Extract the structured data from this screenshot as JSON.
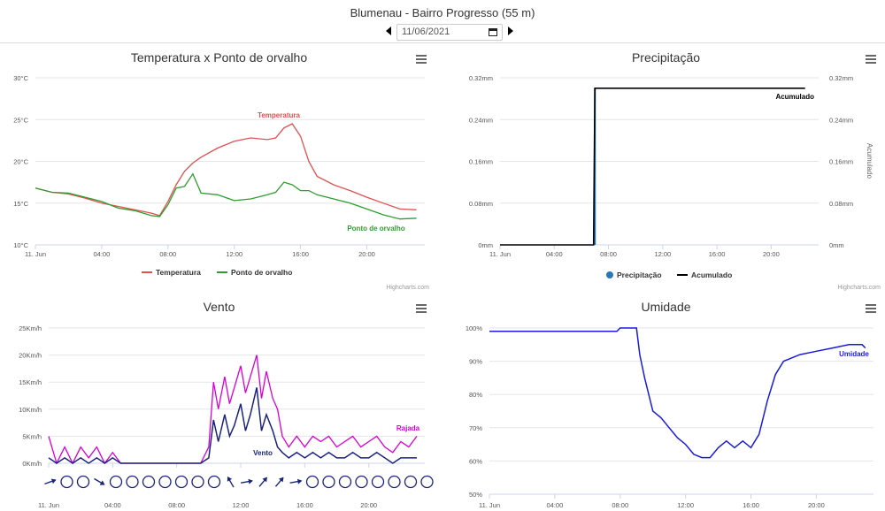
{
  "page": {
    "title": "Blumenau - Bairro Progresso (55 m)",
    "date": "11/06/2021"
  },
  "icons": {
    "prev": "triangle-left-icon",
    "next": "triangle-right-icon",
    "calendar": "calendar-icon",
    "menu": "hamburger-menu-icon"
  },
  "credits": "Highcharts.com",
  "chart_data": [
    {
      "type": "line",
      "title": "Temperatura x Ponto de orvalho",
      "x_ticks": [
        "11. Jun",
        "04:00",
        "08:00",
        "12:00",
        "16:00",
        "20:00"
      ],
      "y_ticks": [
        "10°C",
        "15°C",
        "20°C",
        "25°C",
        "30°C"
      ],
      "ylim": [
        10,
        30
      ],
      "xlim": [
        0,
        23.5
      ],
      "legend_position": "bottom",
      "series": [
        {
          "name": "Temperatura",
          "color": "#e05050",
          "x": [
            0,
            1,
            2,
            3,
            4,
            5,
            6,
            7,
            7.5,
            8,
            8.5,
            9,
            9.5,
            10,
            11,
            12,
            13,
            14,
            14.5,
            15,
            15.5,
            16,
            16.5,
            17,
            18,
            19,
            20,
            21,
            22,
            23
          ],
          "y": [
            16.8,
            16.3,
            16.1,
            15.6,
            15.0,
            14.6,
            14.2,
            13.8,
            13.5,
            15.2,
            17.2,
            18.8,
            19.8,
            20.5,
            21.6,
            22.4,
            22.8,
            22.6,
            22.8,
            24.0,
            24.5,
            23.0,
            20.0,
            18.2,
            17.2,
            16.5,
            15.7,
            15.0,
            14.3,
            14.2
          ]
        },
        {
          "name": "Ponto de orvalho",
          "color": "#2e9e2e",
          "x": [
            0,
            1,
            2,
            3,
            4,
            5,
            6,
            7,
            7.5,
            8,
            8.5,
            9,
            9.5,
            10,
            11,
            12,
            13,
            14,
            14.5,
            15,
            15.5,
            16,
            16.5,
            17,
            18,
            19,
            20,
            21,
            22,
            23
          ],
          "y": [
            16.8,
            16.3,
            16.2,
            15.7,
            15.2,
            14.4,
            14.1,
            13.5,
            13.4,
            14.8,
            16.8,
            17.0,
            18.5,
            16.2,
            16.0,
            15.3,
            15.5,
            16.0,
            16.3,
            17.5,
            17.2,
            16.5,
            16.5,
            16.0,
            15.5,
            15.0,
            14.3,
            13.6,
            13.1,
            13.2
          ]
        }
      ],
      "annotations": [
        "Temperatura",
        "Ponto de orvalho"
      ]
    },
    {
      "type": "line",
      "title": "Precipitação",
      "x_ticks": [
        "11. Jun",
        "04:00",
        "08:00",
        "12:00",
        "16:00",
        "20:00"
      ],
      "y_ticks_left": [
        "0mm",
        "0.08mm",
        "0.16mm",
        "0.24mm",
        "0.32mm"
      ],
      "y_ticks_right": [
        "0mm",
        "0.08mm",
        "0.16mm",
        "0.24mm",
        "0.32mm"
      ],
      "y_right_label": "Acumulado",
      "ylim": [
        0,
        0.32
      ],
      "xlim": [
        0,
        23.5
      ],
      "legend_position": "bottom",
      "series": [
        {
          "name": "Precipitação",
          "color": "#2878b8",
          "x": [
            7.0
          ],
          "y": [
            0.3
          ]
        },
        {
          "name": "Acumulado",
          "color": "#000000",
          "x": [
            0,
            6.9,
            7.0,
            22.5
          ],
          "y": [
            0,
            0,
            0.3,
            0.3
          ]
        }
      ],
      "annotations": [
        "Acumulado"
      ]
    },
    {
      "type": "line",
      "title": "Vento",
      "x_ticks": [
        "11. Jun",
        "04:00",
        "08:00",
        "12:00",
        "16:00",
        "20:00"
      ],
      "y_ticks": [
        "0Km/h",
        "5Km/h",
        "10Km/h",
        "15Km/h",
        "20Km/h",
        "25Km/h"
      ],
      "ylim": [
        0,
        25
      ],
      "xlim": [
        0,
        23.5
      ],
      "series": [
        {
          "name": "Rajada",
          "color": "#d400d4",
          "x": [
            0,
            0.5,
            1,
            1.5,
            2,
            2.5,
            3,
            3.5,
            4,
            4.5,
            5,
            5.5,
            6,
            6.5,
            7,
            7.5,
            8,
            8.5,
            9,
            9.5,
            10,
            10.3,
            10.6,
            11,
            11.3,
            11.6,
            12,
            12.3,
            12.6,
            13,
            13.3,
            13.6,
            14,
            14.3,
            14.6,
            15,
            15.5,
            16,
            16.5,
            17,
            17.5,
            18,
            18.5,
            19,
            19.5,
            20,
            20.5,
            21,
            21.5,
            22,
            22.5,
            23
          ],
          "y": [
            5,
            0,
            3,
            0,
            3,
            1,
            3,
            0,
            2,
            0,
            0,
            0,
            0,
            0,
            0,
            0,
            0,
            0,
            0,
            0,
            3,
            15,
            10,
            16,
            11,
            14,
            18,
            13,
            16,
            20,
            12,
            17,
            12,
            10,
            5,
            3,
            5,
            3,
            5,
            4,
            5,
            3,
            4,
            5,
            3,
            4,
            5,
            3,
            2,
            4,
            3,
            5
          ]
        },
        {
          "name": "Vento",
          "color": "#1a237e",
          "x": [
            0,
            0.5,
            1,
            1.5,
            2,
            2.5,
            3,
            3.5,
            4,
            4.5,
            5,
            5.5,
            6,
            6.5,
            7,
            7.5,
            8,
            8.5,
            9,
            9.5,
            10,
            10.3,
            10.6,
            11,
            11.3,
            11.6,
            12,
            12.3,
            12.6,
            13,
            13.3,
            13.6,
            14,
            14.3,
            14.6,
            15,
            15.5,
            16,
            16.5,
            17,
            17.5,
            18,
            18.5,
            19,
            19.5,
            20,
            20.5,
            21,
            21.5,
            22,
            22.5,
            23
          ],
          "y": [
            1,
            0,
            1,
            0,
            1,
            0,
            1,
            0,
            1,
            0,
            0,
            0,
            0,
            0,
            0,
            0,
            0,
            0,
            0,
            0,
            1,
            8,
            4,
            9,
            5,
            7,
            11,
            6,
            9,
            14,
            6,
            9,
            6,
            3,
            2,
            1,
            2,
            1,
            2,
            1,
            2,
            1,
            1,
            2,
            1,
            1,
            2,
            1,
            0,
            1,
            1,
            1
          ]
        }
      ],
      "annotations": [
        "Rajada",
        "Vento"
      ],
      "wind_symbols": [
        "arrow",
        "calm",
        "calm",
        "arrow",
        "calm",
        "calm",
        "calm",
        "calm",
        "calm",
        "calm",
        "calm",
        "arrow",
        "arrow",
        "arrow",
        "arrow",
        "arrow",
        "calm",
        "calm",
        "calm",
        "calm",
        "calm",
        "calm",
        "calm",
        "calm"
      ],
      "wind_arrow_angles": [
        -20,
        0,
        0,
        30,
        0,
        0,
        0,
        0,
        0,
        0,
        0,
        -120,
        -10,
        -50,
        -50,
        -10,
        0,
        0,
        0,
        0,
        0,
        0,
        0,
        0
      ]
    },
    {
      "type": "line",
      "title": "Umidade",
      "x_ticks": [
        "11. Jun",
        "04:00",
        "08:00",
        "12:00",
        "16:00",
        "20:00"
      ],
      "y_ticks": [
        "50%",
        "60%",
        "70%",
        "80%",
        "90%",
        "100%"
      ],
      "ylim": [
        50,
        100
      ],
      "xlim": [
        0,
        23.5
      ],
      "series": [
        {
          "name": "Umidade",
          "color": "#1a1ae0",
          "x": [
            0,
            4,
            7.8,
            8,
            9,
            9.2,
            9.5,
            10,
            10.5,
            11,
            11.5,
            12,
            12.5,
            13,
            13.5,
            14,
            14.5,
            15,
            15.5,
            16,
            16.5,
            17,
            17.5,
            18,
            18.5,
            19,
            20,
            21,
            22,
            22.8,
            23
          ],
          "y": [
            99,
            99,
            99,
            100,
            100,
            92,
            85,
            75,
            73,
            70,
            67,
            65,
            62,
            61,
            61,
            64,
            66,
            64,
            66,
            64,
            68,
            78,
            86,
            90,
            91,
            92,
            93,
            94,
            95,
            95,
            94
          ]
        }
      ],
      "annotations": [
        "Umidade"
      ]
    }
  ]
}
